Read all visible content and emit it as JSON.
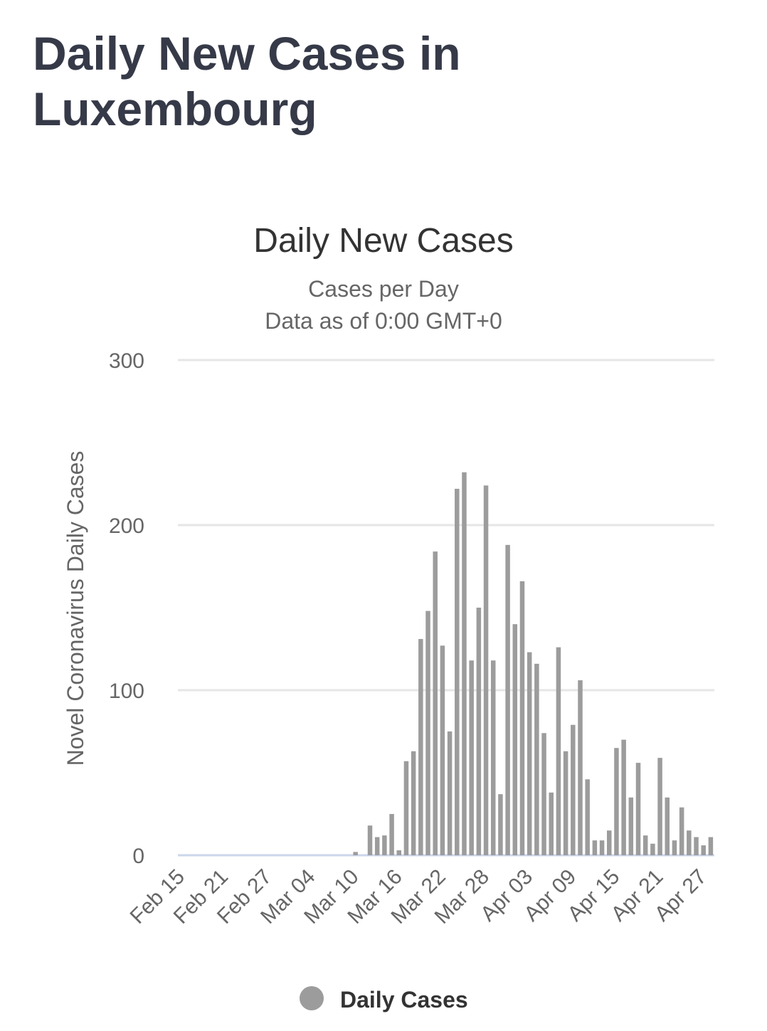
{
  "page": {
    "title": "Daily New Cases in Luxembourg"
  },
  "colors": {
    "bar": "#9c9c9c",
    "grid": "#e6e6e6",
    "baseline": "#ccd6eb",
    "title": "#363a48"
  },
  "chart_data": {
    "type": "bar",
    "title": "Daily New Cases",
    "subtitle_lines": [
      "Cases per Day",
      "Data as of 0:00 GMT+0"
    ],
    "xlabel": "",
    "ylabel": "Novel Coronavirus Daily Cases",
    "ylim": [
      0,
      300
    ],
    "yticks": [
      0,
      100,
      200,
      300
    ],
    "grid": true,
    "legend": {
      "position": "bottom",
      "entries": [
        "Daily Cases"
      ]
    },
    "xtick_labels": [
      "Feb 15",
      "Feb 21",
      "Feb 27",
      "Mar 04",
      "Mar 10",
      "Mar 16",
      "Mar 22",
      "Mar 28",
      "Apr 03",
      "Apr 09",
      "Apr 15",
      "Apr 21",
      "Apr 27"
    ],
    "categories": [
      "Feb 15",
      "Feb 16",
      "Feb 17",
      "Feb 18",
      "Feb 19",
      "Feb 20",
      "Feb 21",
      "Feb 22",
      "Feb 23",
      "Feb 24",
      "Feb 25",
      "Feb 26",
      "Feb 27",
      "Feb 28",
      "Feb 29",
      "Mar 01",
      "Mar 02",
      "Mar 03",
      "Mar 04",
      "Mar 05",
      "Mar 06",
      "Mar 07",
      "Mar 08",
      "Mar 09",
      "Mar 10",
      "Mar 11",
      "Mar 12",
      "Mar 13",
      "Mar 14",
      "Mar 15",
      "Mar 16",
      "Mar 17",
      "Mar 18",
      "Mar 19",
      "Mar 20",
      "Mar 21",
      "Mar 22",
      "Mar 23",
      "Mar 24",
      "Mar 25",
      "Mar 26",
      "Mar 27",
      "Mar 28",
      "Mar 29",
      "Mar 30",
      "Mar 31",
      "Apr 01",
      "Apr 02",
      "Apr 03",
      "Apr 04",
      "Apr 05",
      "Apr 06",
      "Apr 07",
      "Apr 08",
      "Apr 09",
      "Apr 10",
      "Apr 11",
      "Apr 12",
      "Apr 13",
      "Apr 14",
      "Apr 15",
      "Apr 16",
      "Apr 17",
      "Apr 18",
      "Apr 19",
      "Apr 20",
      "Apr 21",
      "Apr 22",
      "Apr 23",
      "Apr 24",
      "Apr 25",
      "Apr 26",
      "Apr 27",
      "Apr 28"
    ],
    "series": [
      {
        "name": "Daily Cases",
        "values": [
          0,
          0,
          0,
          0,
          0,
          0,
          0,
          0,
          0,
          0,
          0,
          0,
          0,
          0,
          0,
          0,
          0,
          0,
          0,
          0,
          0,
          0,
          0,
          0,
          2,
          0,
          18,
          11,
          12,
          25,
          3,
          57,
          63,
          131,
          148,
          184,
          127,
          75,
          222,
          232,
          118,
          150,
          224,
          118,
          37,
          188,
          140,
          166,
          123,
          116,
          74,
          38,
          126,
          63,
          79,
          106,
          46,
          9,
          9,
          15,
          65,
          70,
          35,
          56,
          12,
          7,
          59,
          35,
          9,
          29,
          15,
          11,
          6,
          11
        ]
      }
    ]
  }
}
